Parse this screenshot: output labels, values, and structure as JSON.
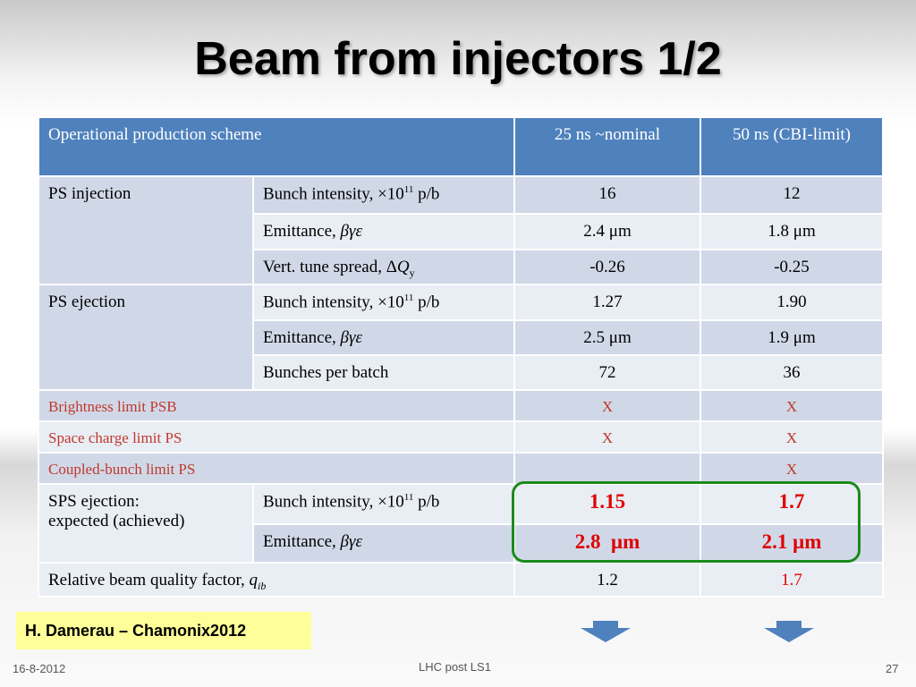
{
  "header": {
    "title": "Beam from injectors 1/2"
  },
  "table": {
    "header": [
      "Operational production scheme",
      "25 ns ~nominal",
      "50 ns  (CBI-limit)"
    ],
    "groups": [
      {
        "name": "PS injection",
        "rows": [
          {
            "label": [
              "Bunch intensity, ×10",
              "11",
              " p/b"
            ],
            "ns25": "16",
            "ns50": "12"
          },
          {
            "label": [
              "Emittance, ",
              "βγε"
            ],
            "ns25": "2.4 μm",
            "ns50": "1.8 μm"
          },
          {
            "label": [
              "Vert. tune spread, Δ",
              "Q",
              "y"
            ],
            "ns25": "-0.26",
            "ns50": "-0.25"
          }
        ]
      },
      {
        "name": "PS ejection",
        "rows": [
          {
            "label": [
              "Bunch intensity, ×10",
              "11",
              " p/b"
            ],
            "ns25": "1.27",
            "ns50": "1.90"
          },
          {
            "label": [
              "Emittance, ",
              "βγε"
            ],
            "ns25": "2.5 μm",
            "ns50": "1.9 μm"
          },
          {
            "label": [
              "Bunches per batch"
            ],
            "ns25": "72",
            "ns50": "36"
          }
        ]
      }
    ],
    "limits": [
      {
        "label": "Brightness limit PSB",
        "ns25": "X",
        "ns50": "X"
      },
      {
        "label": "Space charge limit PS",
        "ns25": "X",
        "ns50": "X"
      },
      {
        "label": "Coupled-bunch limit PS",
        "ns50": "X"
      }
    ],
    "sps": {
      "name": [
        "SPS ejection:",
        "expected (achieved)"
      ],
      "rows": [
        {
          "label": [
            "Bunch intensity, ×10",
            "11",
            " p/b"
          ],
          "ns25": "1.15",
          "ns50": "1.7"
        },
        {
          "label": [
            "Emittance, ",
            "βγε"
          ],
          "ns25": "2.8  μm",
          "ns50": "2.1 μm"
        }
      ]
    },
    "quality": {
      "label": [
        "Relative beam quality factor, ",
        "q",
        "ib"
      ],
      "ns25": "1.2",
      "ns50": "1.7"
    }
  },
  "footer": {
    "credit": "H. Damerau – Chamonix2012",
    "date": "16-8-2012",
    "center": "LHC post LS1",
    "page": "27"
  }
}
